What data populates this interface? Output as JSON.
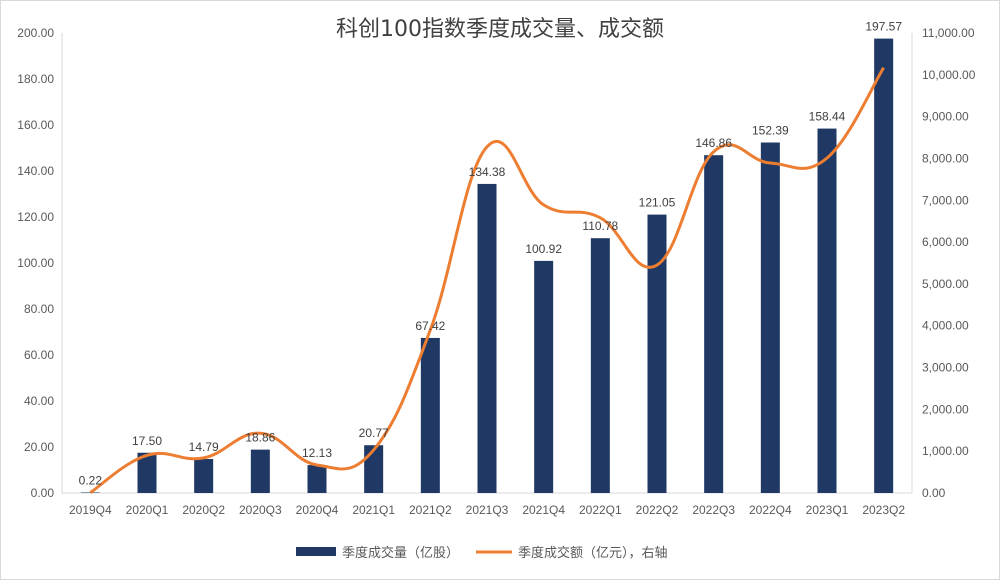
{
  "chart_data": {
    "type": "bar+line",
    "title": "科创100指数季度成交量、成交额",
    "categories": [
      "2019Q4",
      "2020Q1",
      "2020Q2",
      "2020Q3",
      "2020Q4",
      "2021Q1",
      "2021Q2",
      "2021Q3",
      "2021Q4",
      "2022Q1",
      "2022Q2",
      "2022Q3",
      "2022Q4",
      "2023Q1",
      "2023Q2"
    ],
    "series": [
      {
        "name": "季度成交量（亿股）",
        "type": "bar",
        "axis": "left",
        "color": "#1f3864",
        "values": [
          0.22,
          17.5,
          14.79,
          18.86,
          12.13,
          20.77,
          67.42,
          134.38,
          100.92,
          110.78,
          121.05,
          146.86,
          152.39,
          158.44,
          197.57
        ],
        "labels": [
          "0.22",
          "17.50",
          "14.79",
          "18.86",
          "12.13",
          "20.77",
          "67.42",
          "134.38",
          "100.92",
          "110.78",
          "121.05",
          "146.86",
          "152.39",
          "158.44",
          "197.57"
        ]
      },
      {
        "name": "季度成交额（亿元），右轴",
        "type": "line",
        "axis": "right",
        "color": "#ed7d31",
        "values": [
          10,
          900,
          840,
          1430,
          670,
          1030,
          3900,
          8280,
          6890,
          6580,
          5450,
          8160,
          7890,
          8010,
          10170
        ]
      }
    ],
    "y_left": {
      "min": 0,
      "max": 200,
      "step": 20,
      "ticks": [
        "0.00",
        "20.00",
        "40.00",
        "60.00",
        "80.00",
        "100.00",
        "120.00",
        "140.00",
        "160.00",
        "180.00",
        "200.00"
      ]
    },
    "y_right": {
      "min": 0,
      "max": 11000,
      "step": 1000,
      "ticks": [
        "0.00",
        "1,000.00",
        "2,000.00",
        "3,000.00",
        "4,000.00",
        "5,000.00",
        "6,000.00",
        "7,000.00",
        "8,000.00",
        "9,000.00",
        "10,000.00",
        "11,000.00"
      ]
    },
    "legend_position": "bottom",
    "grid": false
  }
}
